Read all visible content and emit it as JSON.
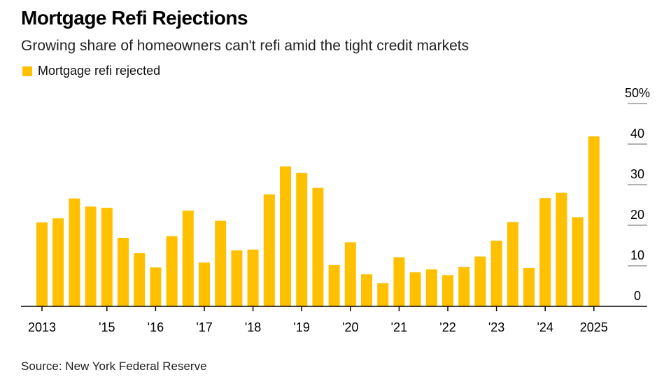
{
  "title": "Mortgage Refi Rejections",
  "subtitle": "Growing share of homeowners can't refi amid the tight credit markets",
  "source": "Source: New York Federal Reserve",
  "colors": {
    "bar": "#FFC000",
    "axis": "#000000",
    "grid": "#999999"
  },
  "chart_data": {
    "type": "bar",
    "title": "Mortgage Refi Rejections",
    "xlabel": "",
    "ylabel": "",
    "ylim": [
      0,
      50
    ],
    "y_ticks": [
      0,
      10,
      20,
      30,
      40,
      50
    ],
    "y_tick_labels": [
      "0",
      "10",
      "20",
      "30",
      "40",
      "50%"
    ],
    "x_tick_labels": [
      {
        "label": "2013",
        "index": 0
      },
      {
        "label": "'15",
        "index": 4
      },
      {
        "label": "'16",
        "index": 7
      },
      {
        "label": "'17",
        "index": 10
      },
      {
        "label": "'18",
        "index": 13
      },
      {
        "label": "'19",
        "index": 16
      },
      {
        "label": "'20",
        "index": 19
      },
      {
        "label": "'21",
        "index": 22
      },
      {
        "label": "'22",
        "index": 25
      },
      {
        "label": "'23",
        "index": 28
      },
      {
        "label": "'24",
        "index": 31
      },
      {
        "label": "2025",
        "index": 34
      }
    ],
    "legend_position": "top-left",
    "series": [
      {
        "name": "Mortgage refi rejected",
        "values": [
          20.7,
          21.7,
          26.6,
          24.6,
          24.3,
          16.9,
          13.1,
          9.6,
          17.3,
          23.6,
          10.8,
          21.1,
          13.8,
          14.0,
          27.6,
          34.5,
          32.9,
          29.2,
          10.2,
          15.8,
          7.9,
          5.7,
          12.1,
          8.4,
          9.1,
          7.7,
          9.7,
          12.3,
          16.2,
          20.8,
          9.5,
          26.7,
          28.0,
          22.0,
          41.9
        ]
      }
    ]
  }
}
